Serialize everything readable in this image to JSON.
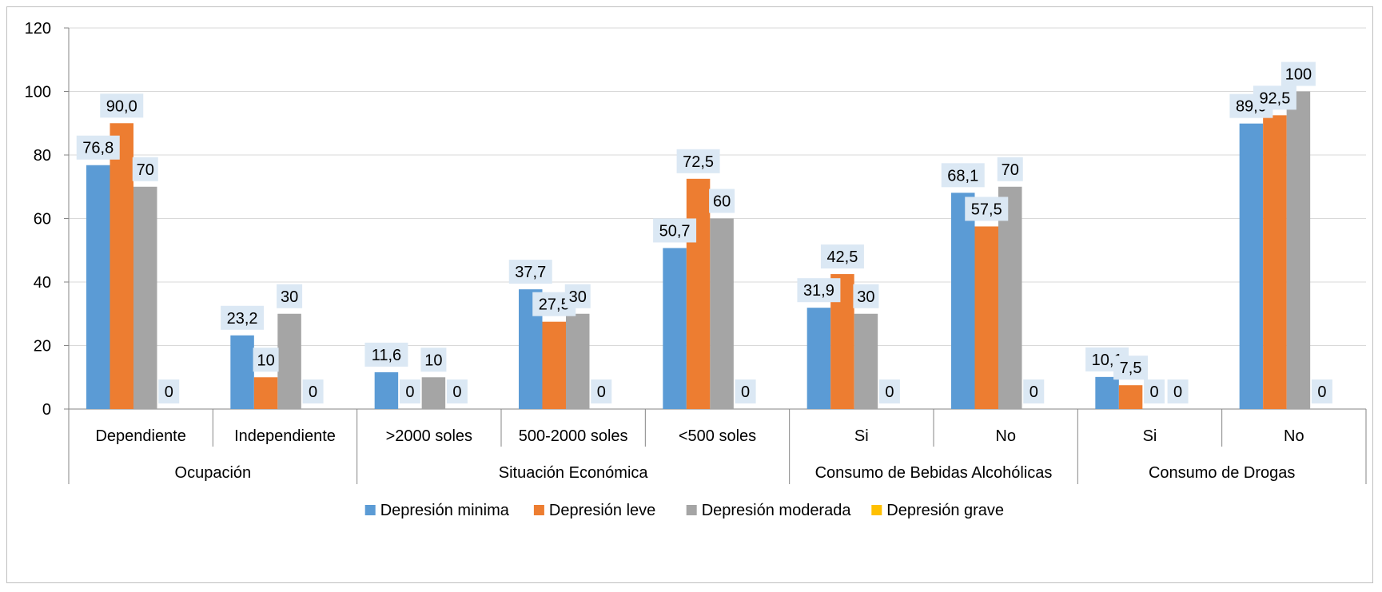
{
  "chart_data": {
    "type": "bar",
    "title": "",
    "xlabel": "",
    "ylabel": "",
    "ylim": [
      0,
      120
    ],
    "yticks": [
      "0",
      "20",
      "40",
      "60",
      "80",
      "100",
      "120"
    ],
    "grid": true,
    "legend_position": "bottom",
    "groups": [
      {
        "label": "Ocupación",
        "categories": [
          "Dependiente",
          "Independiente"
        ]
      },
      {
        "label": "Situación Económica",
        "categories": [
          ">2000 soles",
          "500-2000 soles",
          "<500 soles"
        ]
      },
      {
        "label": "Consumo de Bebidas Alcohólicas",
        "categories": [
          "Si",
          "No"
        ]
      },
      {
        "label": "Consumo de Drogas",
        "categories": [
          "Si",
          "No"
        ]
      }
    ],
    "categories": [
      "Dependiente",
      "Independiente",
      ">2000 soles",
      "500-2000 soles",
      "<500 soles",
      "Si",
      "No",
      "Si",
      "No"
    ],
    "series": [
      {
        "name": "Depresión minima",
        "color": "#5b9bd5",
        "values": [
          76.8,
          23.2,
          11.6,
          37.7,
          50.7,
          31.9,
          68.1,
          10.1,
          89.9
        ],
        "labels": [
          "76,8",
          "23,2",
          "11,6",
          "37,7",
          "50,7",
          "31,9",
          "68,1",
          "10,1",
          "89,9"
        ]
      },
      {
        "name": "Depresión leve",
        "color": "#ed7d31",
        "values": [
          90.0,
          10,
          0,
          27.5,
          72.5,
          42.5,
          57.5,
          7.5,
          92.5
        ],
        "labels": [
          "90,0",
          "10",
          "0",
          "27,5",
          "72,5",
          "42,5",
          "57,5",
          "7,5",
          "92,5"
        ]
      },
      {
        "name": "Depresión moderada",
        "color": "#a5a5a5",
        "values": [
          70,
          30,
          10,
          30,
          60,
          30,
          70,
          0,
          100
        ],
        "labels": [
          "70",
          "30",
          "10",
          "30",
          "60",
          "30",
          "70",
          "0",
          "100"
        ]
      },
      {
        "name": "Depresión grave",
        "color": "#ffc000",
        "values": [
          0,
          0,
          0,
          0,
          0,
          0,
          0,
          0,
          0
        ],
        "labels": [
          "0",
          "0",
          "0",
          "0",
          "0",
          "0",
          "0",
          "0",
          "0"
        ]
      }
    ]
  }
}
